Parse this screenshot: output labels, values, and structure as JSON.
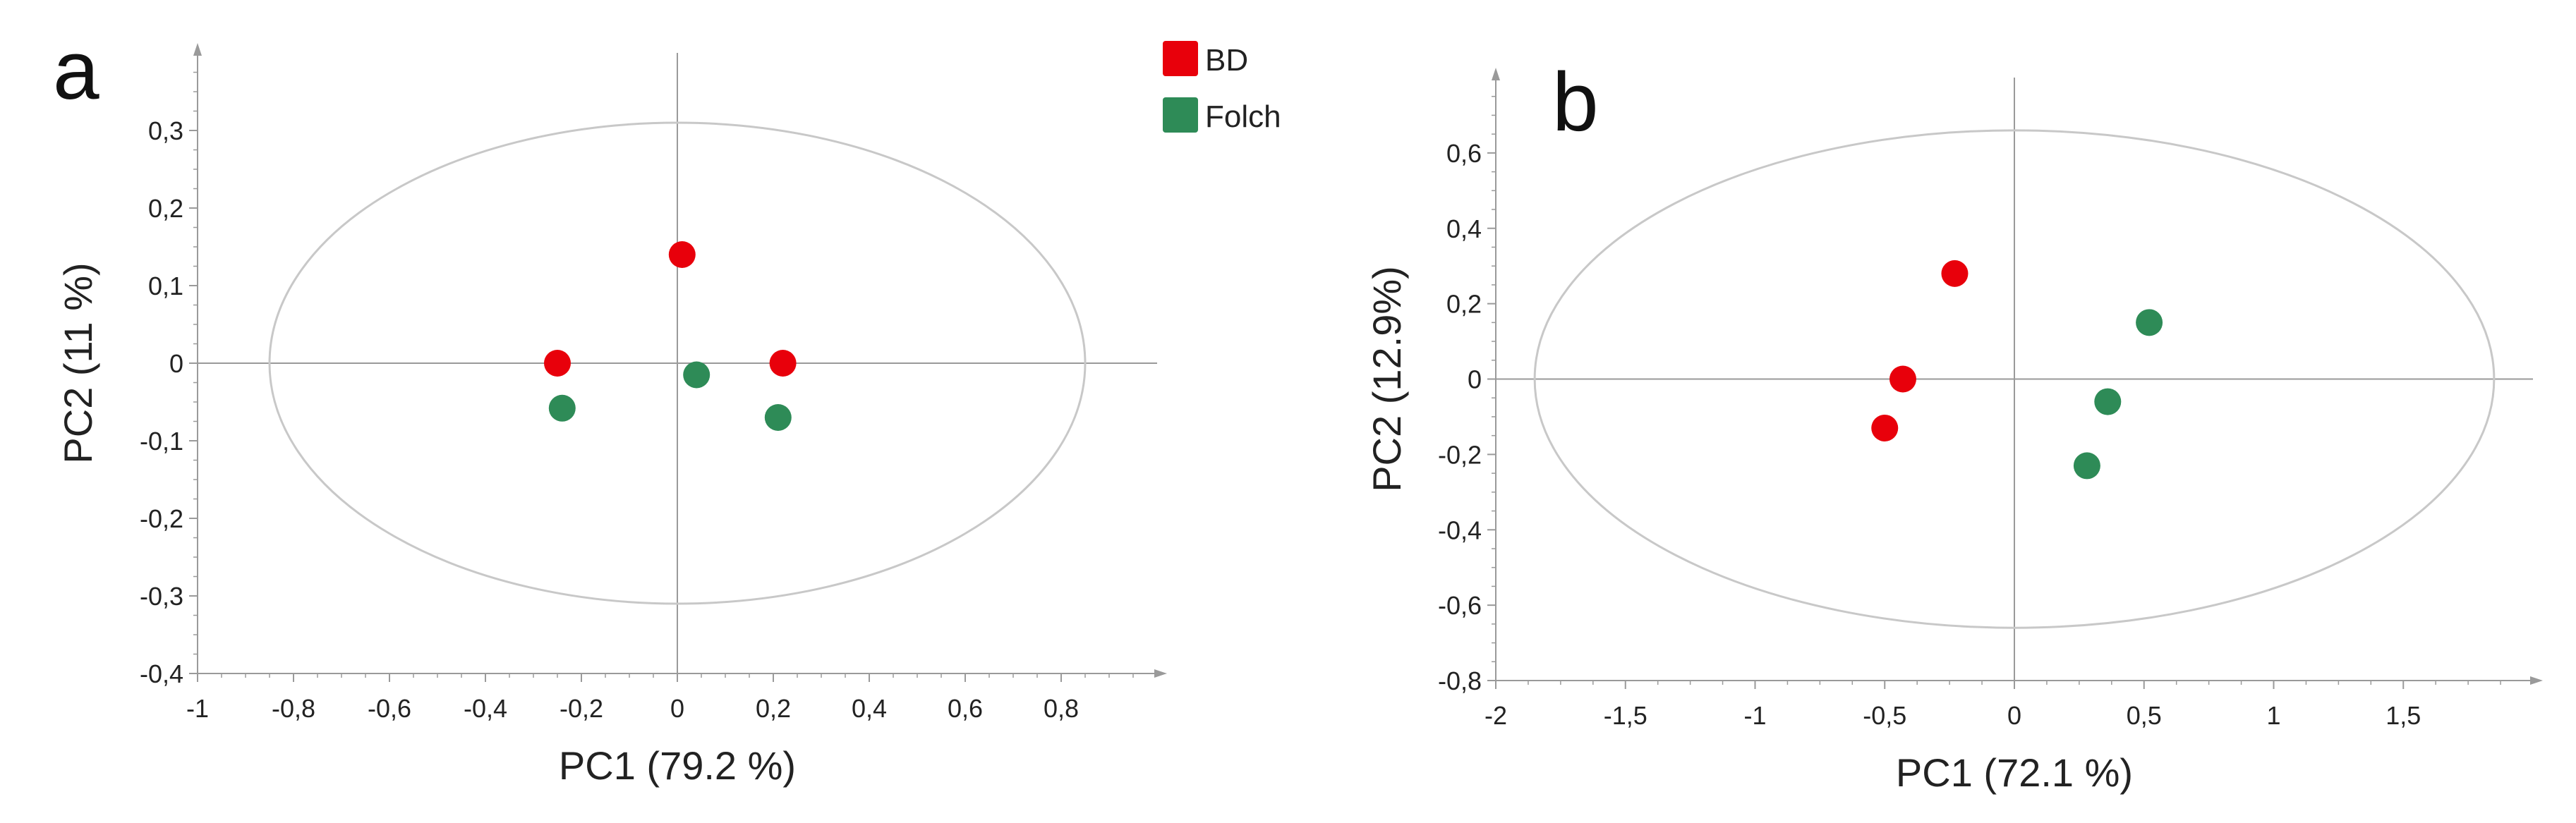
{
  "colors": {
    "BD": "#e8000b",
    "Folch": "#2e8b57",
    "axis": "#9a9a9a",
    "ellipse": "#c8c8c8"
  },
  "legend": {
    "items": [
      {
        "label": "BD",
        "color": "#e8000b"
      },
      {
        "label": "Folch",
        "color": "#2e8b57"
      }
    ]
  },
  "chart_data": [
    {
      "type": "scatter",
      "panel_label": "a",
      "xlabel": "PC1 (79.2 %)",
      "ylabel": "PC2 (11 %)",
      "xlim": [
        -1,
        1.0
      ],
      "ylim": [
        -0.4,
        0.4
      ],
      "xticks": [
        "-1",
        "-0,8",
        "-0,6",
        "-0,4",
        "-0,2",
        "0",
        "0,2",
        "0,4",
        "0,6",
        "0,8"
      ],
      "xtick_values": [
        -1,
        -0.8,
        -0.6,
        -0.4,
        -0.2,
        0,
        0.2,
        0.4,
        0.6,
        0.8
      ],
      "yticks": [
        "-0,4",
        "-0,3",
        "-0,2",
        "-0,1",
        "0",
        "0,1",
        "0,2",
        "0,3"
      ],
      "ytick_values": [
        -0.4,
        -0.3,
        -0.2,
        -0.1,
        0,
        0.1,
        0.2,
        0.3
      ],
      "ellipse": {
        "rx": 0.85,
        "ry": 0.31
      },
      "series": [
        {
          "name": "BD",
          "color": "#e8000b",
          "points": [
            [
              -0.25,
              0.0
            ],
            [
              0.01,
              0.14
            ],
            [
              0.22,
              0.0
            ]
          ]
        },
        {
          "name": "Folch",
          "color": "#2e8b57",
          "points": [
            [
              -0.24,
              -0.058
            ],
            [
              0.04,
              -0.015
            ],
            [
              0.21,
              -0.07
            ]
          ]
        }
      ]
    },
    {
      "type": "scatter",
      "panel_label": "b",
      "xlabel": "PC1 (72.1 %)",
      "ylabel": "PC2 (12.9%)",
      "xlim": [
        -2,
        2.0
      ],
      "ylim": [
        -0.8,
        0.8
      ],
      "xticks": [
        "-2",
        "-1,5",
        "-1",
        "-0,5",
        "0",
        "0,5",
        "1",
        "1,5"
      ],
      "xtick_values": [
        -2,
        -1.5,
        -1,
        -0.5,
        0,
        0.5,
        1,
        1.5
      ],
      "yticks": [
        "-0,8",
        "-0,6",
        "-0,4",
        "-0,2",
        "0",
        "0,2",
        "0,4",
        "0,6"
      ],
      "ytick_values": [
        -0.8,
        -0.6,
        -0.4,
        -0.2,
        0,
        0.2,
        0.4,
        0.6
      ],
      "ellipse": {
        "rx": 1.85,
        "ry": 0.66
      },
      "series": [
        {
          "name": "BD",
          "color": "#e8000b",
          "points": [
            [
              -0.23,
              0.28
            ],
            [
              -0.43,
              0.0
            ],
            [
              -0.5,
              -0.13
            ]
          ]
        },
        {
          "name": "Folch",
          "color": "#2e8b57",
          "points": [
            [
              0.52,
              0.15
            ],
            [
              0.36,
              -0.06
            ],
            [
              0.28,
              -0.23
            ]
          ]
        }
      ]
    }
  ]
}
